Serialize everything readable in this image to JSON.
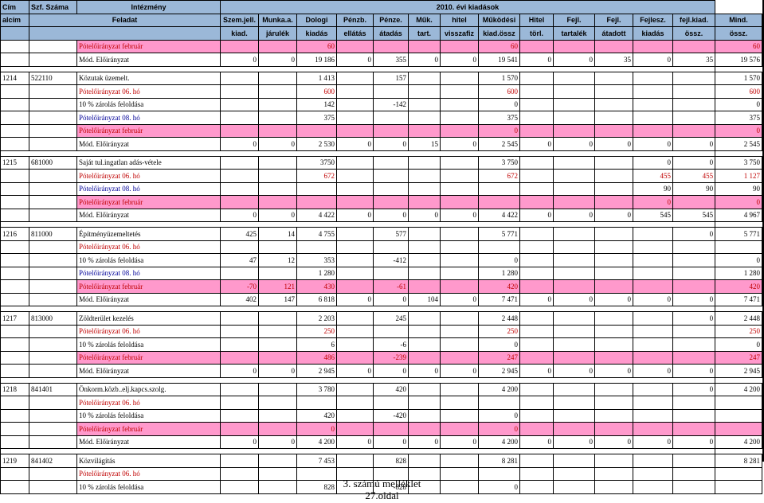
{
  "header": {
    "row1": {
      "cim": "Cím",
      "szf": "Szf. Száma",
      "intezmeny": "Intézmény",
      "title": "2010. évi kiadások"
    },
    "row2": [
      "alcím",
      "Feladat",
      "Szem.jell.",
      "Munka.a.",
      "Dologi",
      "Pénzb.",
      "Pénze.",
      "Műk.",
      "hitel",
      "Működési",
      "Hitel",
      "Fejl.",
      "Fejl.",
      "Fejlesz.",
      "fejl.kiad.",
      "Mind."
    ],
    "row3": [
      "",
      "",
      "kiad.",
      "járulék",
      "kiadás",
      "ellátás",
      "átadás",
      "tart.",
      "visszafiz",
      "kiad.össz",
      "törl.",
      "tartalék",
      "átadott",
      "kiadás",
      "össz.",
      "össz."
    ]
  },
  "rows": [
    {
      "type": "pink",
      "cim": "",
      "szf": "",
      "name": "Pótelőirányzat február",
      "v": [
        "",
        "",
        "60",
        "",
        "",
        "",
        "",
        "60",
        "",
        "",
        "",
        "",
        "",
        "60"
      ]
    },
    {
      "type": "plain",
      "cim": "",
      "szf": "",
      "name": "Mód. Előirányzat",
      "v": [
        "0",
        "0",
        "19 186",
        "0",
        "355",
        "0",
        "0",
        "19 541",
        "0",
        "0",
        "35",
        "0",
        "35",
        "19 576"
      ]
    },
    {
      "type": "sep"
    },
    {
      "type": "plain",
      "cim": "1214",
      "szf": "522110",
      "name": "Közutak üzemelt.",
      "v": [
        "",
        "",
        "1 413",
        "",
        "157",
        "",
        "",
        "1 570",
        "",
        "",
        "",
        "",
        "",
        "1 570"
      ]
    },
    {
      "type": "red",
      "cim": "",
      "szf": "",
      "name": "Pótelőirányzat 06. hó",
      "v": [
        "",
        "",
        "600",
        "",
        "",
        "",
        "",
        "600",
        "",
        "",
        "",
        "",
        "",
        "600"
      ]
    },
    {
      "type": "plain",
      "cim": "",
      "szf": "",
      "name": "10 % zárolás feloldása",
      "v": [
        "",
        "",
        "142",
        "",
        "-142",
        "",
        "",
        "0",
        "",
        "",
        "",
        "",
        "",
        "0"
      ]
    },
    {
      "type": "blue",
      "cim": "",
      "szf": "",
      "name": "Pótelőirányzat 08. hó",
      "v": [
        "",
        "",
        "375",
        "",
        "",
        "",
        "",
        "375",
        "",
        "",
        "",
        "",
        "",
        "375"
      ]
    },
    {
      "type": "pink",
      "cim": "",
      "szf": "",
      "name": "Pótelőirányzat február",
      "v": [
        "",
        "",
        "",
        "",
        "",
        "",
        "",
        "0",
        "",
        "",
        "",
        "",
        "",
        "0"
      ]
    },
    {
      "type": "plain",
      "cim": "",
      "szf": "",
      "name": "Mód. Előirányzat",
      "v": [
        "0",
        "0",
        "2 530",
        "0",
        "0",
        "15",
        "0",
        "2 545",
        "0",
        "0",
        "0",
        "0",
        "0",
        "2 545"
      ]
    },
    {
      "type": "sep"
    },
    {
      "type": "plain",
      "cim": "1215",
      "szf": "681000",
      "name": "Saját tul.ingatlan adás-vétele",
      "v": [
        "",
        "",
        "3750",
        "",
        "",
        "",
        "",
        "3 750",
        "",
        "",
        "",
        "0",
        "0",
        "3 750"
      ]
    },
    {
      "type": "red",
      "cim": "",
      "szf": "",
      "name": "Pótelőirányzat 06. hó",
      "v": [
        "",
        "",
        "672",
        "",
        "",
        "",
        "",
        "672",
        "",
        "",
        "",
        "455",
        "455",
        "1 127"
      ]
    },
    {
      "type": "blue",
      "cim": "",
      "szf": "",
      "name": "Pótelőirányzat 08. hó",
      "v": [
        "",
        "",
        "",
        "",
        "",
        "",
        "",
        "",
        "",
        "",
        "",
        "90",
        "90",
        "90"
      ]
    },
    {
      "type": "pink",
      "cim": "",
      "szf": "",
      "name": "Pótelőirányzat február",
      "v": [
        "",
        "",
        "",
        "",
        "",
        "",
        "",
        "",
        "",
        "",
        "",
        "0",
        "",
        "0"
      ]
    },
    {
      "type": "plain",
      "cim": "",
      "szf": "",
      "name": "Mód. Előirányzat",
      "v": [
        "0",
        "0",
        "4 422",
        "0",
        "0",
        "0",
        "0",
        "4 422",
        "0",
        "0",
        "0",
        "545",
        "545",
        "4 967"
      ]
    },
    {
      "type": "sep"
    },
    {
      "type": "plain",
      "cim": "1216",
      "szf": "811000",
      "name": "Építményüzemeltetés",
      "v": [
        "425",
        "14",
        "4 755",
        "",
        "577",
        "",
        "",
        "5 771",
        "",
        "",
        "",
        "",
        "0",
        "5 771"
      ]
    },
    {
      "type": "red",
      "cim": "",
      "szf": "",
      "name": "Pótelőirányzat 06. hó",
      "v": [
        "",
        "",
        "",
        "",
        "",
        "",
        "",
        "",
        "",
        "",
        "",
        "",
        "",
        ""
      ]
    },
    {
      "type": "plain",
      "cim": "",
      "szf": "",
      "name": "10 % zárolás feloldása",
      "v": [
        "47",
        "12",
        "353",
        "",
        "-412",
        "",
        "",
        "0",
        "",
        "",
        "",
        "",
        "",
        "0"
      ]
    },
    {
      "type": "blue",
      "cim": "",
      "szf": "",
      "name": "Pótelőirányzat 08. hó",
      "v": [
        "",
        "",
        "1 280",
        "",
        "",
        "",
        "",
        "1 280",
        "",
        "",
        "",
        "",
        "",
        "1 280"
      ]
    },
    {
      "type": "pink",
      "cim": "",
      "szf": "",
      "name": "Pótelőirányzat február",
      "v": [
        "-70",
        "121",
        "430",
        "",
        "-61",
        "",
        "",
        "420",
        "",
        "",
        "",
        "",
        "",
        "420"
      ]
    },
    {
      "type": "plain",
      "cim": "",
      "szf": "",
      "name": "Mód. Előirányzat",
      "v": [
        "402",
        "147",
        "6 818",
        "0",
        "0",
        "104",
        "0",
        "7 471",
        "0",
        "0",
        "0",
        "0",
        "0",
        "7 471"
      ]
    },
    {
      "type": "sep"
    },
    {
      "type": "plain",
      "cim": "1217",
      "szf": "813000",
      "name": "Zöldterület kezelés",
      "v": [
        "",
        "",
        "2 203",
        "",
        "245",
        "",
        "",
        "2 448",
        "",
        "",
        "",
        "",
        "0",
        "2 448"
      ]
    },
    {
      "type": "red",
      "cim": "",
      "szf": "",
      "name": "Pótelőirányzat 06. hó",
      "v": [
        "",
        "",
        "250",
        "",
        "",
        "",
        "",
        "250",
        "",
        "",
        "",
        "",
        "",
        "250"
      ]
    },
    {
      "type": "plain",
      "cim": "",
      "szf": "",
      "name": "10 % zárolás feloldása",
      "v": [
        "",
        "",
        "6",
        "",
        "-6",
        "",
        "",
        "0",
        "",
        "",
        "",
        "",
        "",
        "0"
      ]
    },
    {
      "type": "pink",
      "cim": "",
      "szf": "",
      "name": "Pótelőirányzat február",
      "v": [
        "",
        "",
        "486",
        "",
        "-239",
        "",
        "",
        "247",
        "",
        "",
        "",
        "",
        "",
        "247"
      ]
    },
    {
      "type": "plain",
      "cim": "",
      "szf": "",
      "name": "Mód. Előirányzat",
      "v": [
        "0",
        "0",
        "2 945",
        "0",
        "0",
        "0",
        "0",
        "2 945",
        "0",
        "0",
        "0",
        "0",
        "0",
        "2 945"
      ]
    },
    {
      "type": "sep"
    },
    {
      "type": "plain",
      "cim": "1218",
      "szf": "841401",
      "name": "Önkorm.közb..elj.kapcs.szolg.",
      "v": [
        "",
        "",
        "3 780",
        "",
        "420",
        "",
        "",
        "4 200",
        "",
        "",
        "",
        "",
        "0",
        "4 200"
      ]
    },
    {
      "type": "red",
      "cim": "",
      "szf": "",
      "name": "Pótelőirányzat 06. hó",
      "v": [
        "",
        "",
        "",
        "",
        "",
        "",
        "",
        "",
        "",
        "",
        "",
        "",
        "",
        ""
      ]
    },
    {
      "type": "plain",
      "cim": "",
      "szf": "",
      "name": "10 % zárolás feloldása",
      "v": [
        "",
        "",
        "420",
        "",
        "-420",
        "",
        "",
        "0",
        "",
        "",
        "",
        "",
        "",
        ""
      ]
    },
    {
      "type": "pink",
      "cim": "",
      "szf": "",
      "name": "Pótelőirányzat február",
      "v": [
        "",
        "",
        "0",
        "",
        "",
        "",
        "",
        "0",
        "",
        "",
        "",
        "",
        "",
        ""
      ]
    },
    {
      "type": "plain",
      "cim": "",
      "szf": "",
      "name": "Mód. Előirányzat",
      "v": [
        "0",
        "0",
        "4 200",
        "0",
        "0",
        "0",
        "0",
        "4 200",
        "0",
        "0",
        "0",
        "0",
        "0",
        "4 200"
      ]
    },
    {
      "type": "sep"
    },
    {
      "type": "plain",
      "cim": "1219",
      "szf": "841402",
      "name": "Közvilágítás",
      "v": [
        "",
        "",
        "7 453",
        "",
        "828",
        "",
        "",
        "8 281",
        "",
        "",
        "",
        "",
        "",
        "8 281"
      ]
    },
    {
      "type": "red",
      "cim": "",
      "szf": "",
      "name": "Pótelőirányzat 06. hó",
      "v": [
        "",
        "",
        "",
        "",
        "",
        "",
        "",
        "",
        "",
        "",
        "",
        "",
        "",
        ""
      ]
    },
    {
      "type": "plain",
      "cim": "",
      "szf": "",
      "name": "10 % zárolás feloldása",
      "v": [
        "",
        "",
        "828",
        "",
        "-828",
        "",
        "",
        "0",
        "",
        "",
        "",
        "",
        "",
        ""
      ]
    }
  ],
  "footer": {
    "line1": "3. számú melléklet",
    "line2": "27.oldal"
  }
}
